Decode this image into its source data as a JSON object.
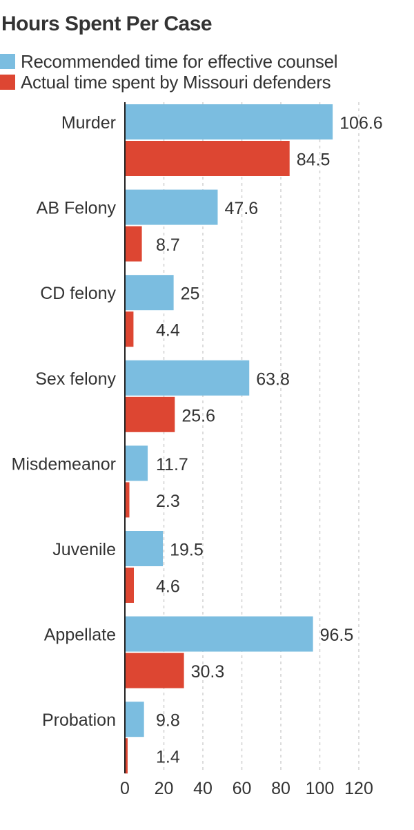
{
  "chart_data": {
    "type": "bar",
    "orientation": "horizontal",
    "title": "Hours Spent Per Case",
    "xlabel": "",
    "ylabel": "",
    "categories": [
      "Murder",
      "AB Felony",
      "CD felony",
      "Sex felony",
      "Misdemeanor",
      "Juvenile",
      "Appellate",
      "Probation"
    ],
    "series": [
      {
        "name": "Recommended time for effective counsel",
        "color": "#7bbde0",
        "values": [
          106.6,
          47.6,
          25,
          63.8,
          11.7,
          19.5,
          96.5,
          9.8
        ],
        "labels": [
          "106.6",
          "47.6",
          "25",
          "63.8",
          "11.7",
          "19.5",
          "96.5",
          "9.8"
        ]
      },
      {
        "name": "Actual time spent by Missouri defenders",
        "color": "#dd4632",
        "values": [
          84.5,
          8.7,
          4.4,
          25.6,
          2.3,
          4.6,
          30.3,
          1.4
        ],
        "labels": [
          "84.5",
          "8.7",
          "4.4",
          "25.6",
          "2.3",
          "4.6",
          "30.3",
          "1.4"
        ]
      }
    ],
    "xlim": [
      0,
      120
    ],
    "xticks": [
      0,
      20,
      40,
      60,
      80,
      100,
      120
    ],
    "xtick_labels": [
      "0",
      "20",
      "40",
      "60",
      "80",
      "100",
      "120"
    ],
    "grid": "vertical dashed",
    "legend_position": "top-left"
  }
}
